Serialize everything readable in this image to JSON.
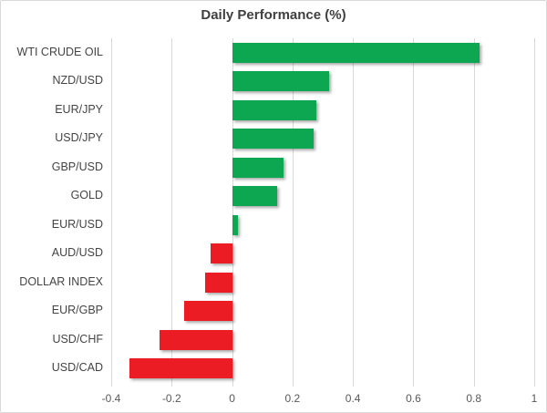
{
  "window": {
    "background": "#ffffff",
    "frame_border_color": "#d9d9d9"
  },
  "chart_data": {
    "type": "bar",
    "orientation": "horizontal",
    "title": "Daily Performance (%)",
    "categories": [
      "WTI CRUDE OIL",
      "NZD/USD",
      "EUR/JPY",
      "USD/JPY",
      "GBP/USD",
      "GOLD",
      "EUR/USD",
      "AUD/USD",
      "DOLLAR INDEX",
      "EUR/GBP",
      "USD/CHF",
      "USD/CAD"
    ],
    "values": [
      0.82,
      0.32,
      0.28,
      0.27,
      0.17,
      0.15,
      0.02,
      -0.07,
      -0.09,
      -0.16,
      -0.24,
      -0.34
    ],
    "xlim": [
      -0.4,
      1.0
    ],
    "x_tick_values": [
      -0.4,
      -0.2,
      0,
      0.2,
      0.4,
      0.6,
      0.8,
      1
    ],
    "x_tick_labels": [
      "-0.4",
      "-0.2",
      "0",
      "0.2",
      "0.4",
      "0.6",
      "0.8",
      "1"
    ],
    "grid": true,
    "legend": "none",
    "positive_color": "#0ca750",
    "negative_color": "#ec1c24",
    "gridline_color": "#d9d9d9",
    "title_color": "#3f3f3f",
    "category_label_color": "#444444",
    "tick_label_color": "#595959"
  }
}
